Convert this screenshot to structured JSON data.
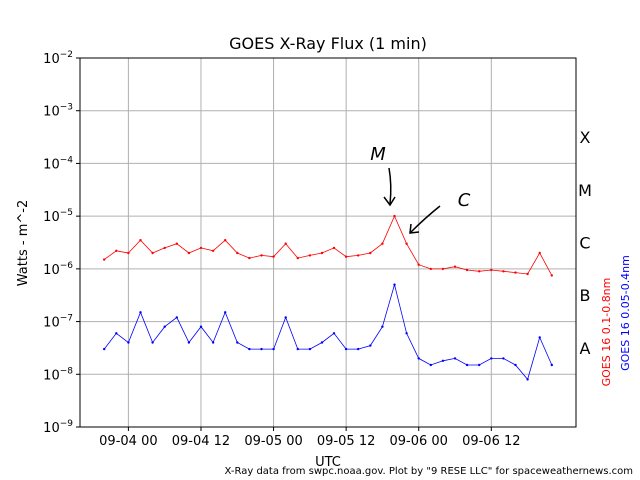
{
  "chart_data": {
    "type": "line",
    "title": "GOES X-Ray Flux (1 min)",
    "xlabel": "UTC",
    "ylabel": "Watts - m^-2",
    "yscale": "log",
    "ylim": [
      1e-09,
      0.01
    ],
    "xlim": [
      "2019-09-03 16:00",
      "2019-09-07 02:00"
    ],
    "grid": true,
    "x_ticks": [
      "09-04 00",
      "09-04 12",
      "09-05 00",
      "09-05 12",
      "09-06 00",
      "09-06 12"
    ],
    "y_ticks": [
      {
        "base": "10",
        "exp": "−2"
      },
      {
        "base": "10",
        "exp": "−3"
      },
      {
        "base": "10",
        "exp": "−4"
      },
      {
        "base": "10",
        "exp": "−5"
      },
      {
        "base": "10",
        "exp": "−6"
      },
      {
        "base": "10",
        "exp": "−7"
      },
      {
        "base": "10",
        "exp": "−8"
      },
      {
        "base": "10",
        "exp": "−9"
      }
    ],
    "flare_classes": [
      "X",
      "M",
      "C",
      "B",
      "A"
    ],
    "annotations": [
      "M",
      "C"
    ],
    "credit": "X-Ray data from swpc.noaa.gov. Plot by \"9 RESE LLC\" for spaceweathernews.com",
    "series": [
      {
        "name": "GOES 16 0.1-0.8nm",
        "color": "#ff0000",
        "x": [
          "2019-09-03 20:00",
          "2019-09-03 22:00",
          "2019-09-04 00:00",
          "2019-09-04 02:00",
          "2019-09-04 04:00",
          "2019-09-04 06:00",
          "2019-09-04 08:00",
          "2019-09-04 10:00",
          "2019-09-04 12:00",
          "2019-09-04 14:00",
          "2019-09-04 16:00",
          "2019-09-04 18:00",
          "2019-09-04 20:00",
          "2019-09-04 22:00",
          "2019-09-05 00:00",
          "2019-09-05 02:00",
          "2019-09-05 04:00",
          "2019-09-05 06:00",
          "2019-09-05 08:00",
          "2019-09-05 10:00",
          "2019-09-05 12:00",
          "2019-09-05 14:00",
          "2019-09-05 16:00",
          "2019-09-05 18:00",
          "2019-09-05 20:00",
          "2019-09-05 22:00",
          "2019-09-06 00:00",
          "2019-09-06 02:00",
          "2019-09-06 04:00",
          "2019-09-06 06:00",
          "2019-09-06 08:00",
          "2019-09-06 10:00",
          "2019-09-06 12:00",
          "2019-09-06 14:00",
          "2019-09-06 16:00",
          "2019-09-06 18:00",
          "2019-09-06 20:00",
          "2019-09-06 22:00"
        ],
        "values": [
          1.5e-06,
          2.2e-06,
          2e-06,
          3.5e-06,
          2e-06,
          2.5e-06,
          3e-06,
          2e-06,
          2.5e-06,
          2.2e-06,
          3.5e-06,
          2e-06,
          1.6e-06,
          1.8e-06,
          1.7e-06,
          3e-06,
          1.6e-06,
          1.8e-06,
          2e-06,
          2.5e-06,
          1.7e-06,
          1.8e-06,
          2e-06,
          3e-06,
          1e-05,
          3e-06,
          1.2e-06,
          1e-06,
          1e-06,
          1.1e-06,
          9.5e-07,
          9e-07,
          9.5e-07,
          9e-07,
          8.5e-07,
          8e-07,
          2e-06,
          7.5e-07
        ]
      },
      {
        "name": "GOES 16 0.05-0.4nm",
        "color": "#0000ff",
        "x": [
          "2019-09-03 20:00",
          "2019-09-03 22:00",
          "2019-09-04 00:00",
          "2019-09-04 02:00",
          "2019-09-04 04:00",
          "2019-09-04 06:00",
          "2019-09-04 08:00",
          "2019-09-04 10:00",
          "2019-09-04 12:00",
          "2019-09-04 14:00",
          "2019-09-04 16:00",
          "2019-09-04 18:00",
          "2019-09-04 20:00",
          "2019-09-04 22:00",
          "2019-09-05 00:00",
          "2019-09-05 02:00",
          "2019-09-05 04:00",
          "2019-09-05 06:00",
          "2019-09-05 08:00",
          "2019-09-05 10:00",
          "2019-09-05 12:00",
          "2019-09-05 14:00",
          "2019-09-05 16:00",
          "2019-09-05 18:00",
          "2019-09-05 20:00",
          "2019-09-05 22:00",
          "2019-09-06 00:00",
          "2019-09-06 02:00",
          "2019-09-06 04:00",
          "2019-09-06 06:00",
          "2019-09-06 08:00",
          "2019-09-06 10:00",
          "2019-09-06 12:00",
          "2019-09-06 14:00",
          "2019-09-06 16:00",
          "2019-09-06 18:00",
          "2019-09-06 20:00",
          "2019-09-06 22:00"
        ],
        "values": [
          3e-08,
          6e-08,
          4e-08,
          1.5e-07,
          4e-08,
          8e-08,
          1.2e-07,
          4e-08,
          8e-08,
          4e-08,
          1.5e-07,
          4e-08,
          3e-08,
          3e-08,
          3e-08,
          1.2e-07,
          3e-08,
          3e-08,
          4e-08,
          6e-08,
          3e-08,
          3e-08,
          3.5e-08,
          8e-08,
          5e-07,
          6e-08,
          2e-08,
          1.5e-08,
          1.8e-08,
          2e-08,
          1.5e-08,
          1.5e-08,
          2e-08,
          2e-08,
          1.5e-08,
          8e-09,
          5e-08,
          1.5e-08
        ]
      }
    ]
  }
}
